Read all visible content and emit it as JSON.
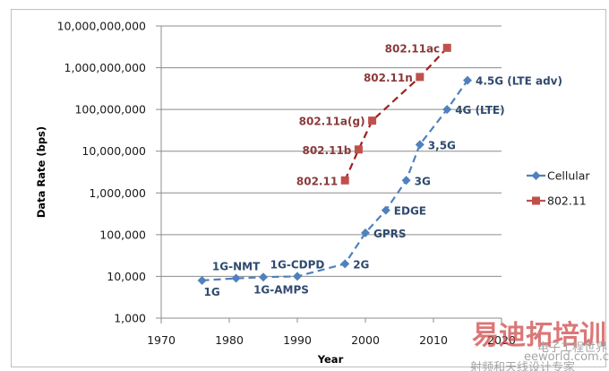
{
  "chart_data": {
    "type": "line",
    "title": "",
    "xlabel": "Year",
    "ylabel": "Data Rate (bps)",
    "yscale": "log",
    "xlim": [
      1970,
      2020
    ],
    "ylim": [
      1000,
      10000000000
    ],
    "grid": "horizontal",
    "x_ticks": [
      "1970",
      "1980",
      "1990",
      "2000",
      "2010",
      "2020"
    ],
    "x_tick_values": [
      1970,
      1980,
      1990,
      2000,
      2010,
      2020
    ],
    "y_ticks": [
      "1,000",
      "10,000",
      "100,000",
      "1,000,000",
      "10,000,000",
      "100,000,000",
      "1,000,000,000",
      "10,000,000,000"
    ],
    "y_tick_values": [
      1000,
      10000,
      100000,
      1000000,
      10000000,
      100000000,
      1000000000,
      10000000000
    ],
    "legend": {
      "position": "right",
      "entries": [
        "Cellular",
        "802.11"
      ]
    },
    "series": [
      {
        "name": "Cellular",
        "color": "#4f81bd",
        "label_color": "#2f4a6e",
        "marker": "diamond",
        "line": "dashed",
        "points": [
          {
            "x": 1976,
            "y": 8000,
            "label": "1G",
            "label_pos": "below-right"
          },
          {
            "x": 1981,
            "y": 9000,
            "label": "1G-NMT",
            "label_pos": "above"
          },
          {
            "x": 1985,
            "y": 9600,
            "label": "1G-AMPS",
            "label_pos": "below"
          },
          {
            "x": 1990,
            "y": 10000,
            "label": "1G-CDPD",
            "label_pos": "above"
          },
          {
            "x": 1997,
            "y": 20000,
            "label": "2G",
            "label_pos": "right"
          },
          {
            "x": 2000,
            "y": 110000,
            "label": "GPRS",
            "label_pos": "right"
          },
          {
            "x": 2003,
            "y": 384000,
            "label": "EDGE",
            "label_pos": "right"
          },
          {
            "x": 2006,
            "y": 2000000,
            "label": "3G",
            "label_pos": "right"
          },
          {
            "x": 2008,
            "y": 14400000,
            "label": "3,5G",
            "label_pos": "right"
          },
          {
            "x": 2012,
            "y": 100000000,
            "label": "4G (LTE)",
            "label_pos": "right"
          },
          {
            "x": 2015,
            "y": 500000000,
            "label": "4.5G (LTE adv)",
            "label_pos": "right"
          }
        ]
      },
      {
        "name": "802.11",
        "color": "#c0504d",
        "line_color": "#a02020",
        "label_color": "#8a3a3a",
        "marker": "square",
        "line": "dashed",
        "points": [
          {
            "x": 1997,
            "y": 2000000,
            "label": "802.11",
            "label_pos": "left"
          },
          {
            "x": 1999,
            "y": 11000000,
            "label": "802.11b",
            "label_pos": "left"
          },
          {
            "x": 2001,
            "y": 54000000,
            "label": "802.11a(g)",
            "label_pos": "left"
          },
          {
            "x": 2008,
            "y": 600000000,
            "label": "802.11n",
            "label_pos": "left"
          },
          {
            "x": 2012,
            "y": 3000000000,
            "label": "802.11ac",
            "label_pos": "left"
          }
        ]
      }
    ]
  },
  "watermark": {
    "main": "易迪拓培训",
    "site": "eeworld.com.cn",
    "brand": "电子工程世界",
    "sub": "射频和天线设计专家"
  }
}
